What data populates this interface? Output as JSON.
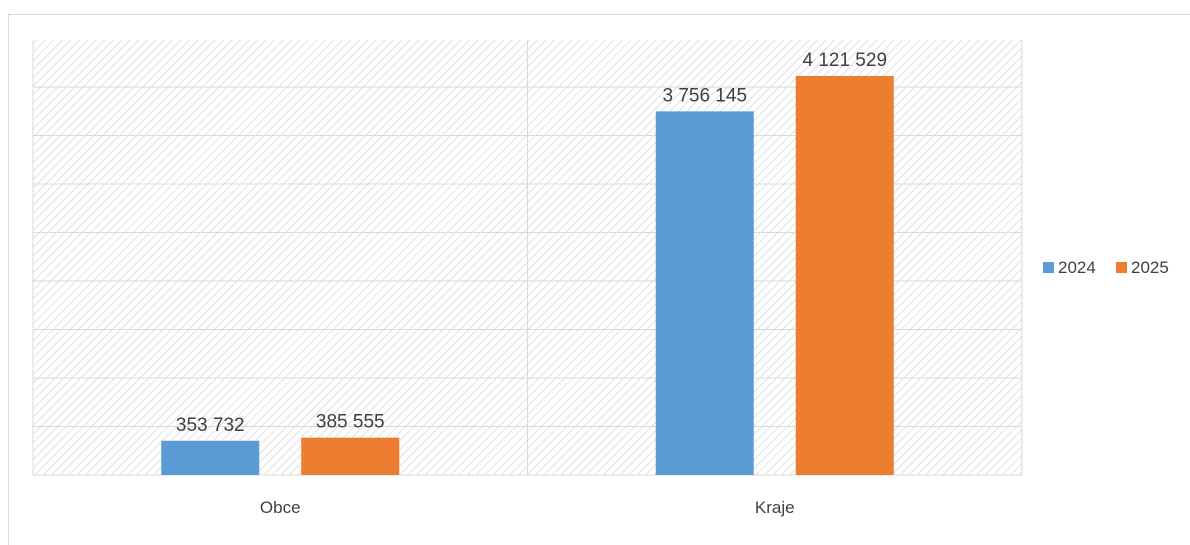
{
  "chart_data": {
    "type": "bar",
    "categories": [
      "Obce",
      "Kraje"
    ],
    "series": [
      {
        "name": "2024",
        "values": [
          353732,
          3756145
        ],
        "labels": [
          "353 732",
          "3 756 145"
        ],
        "color": "#5b9bd5"
      },
      {
        "name": "2025",
        "values": [
          385555,
          4121529
        ],
        "labels": [
          "385 555",
          "4 121 529"
        ],
        "color": "#ed7d31"
      }
    ],
    "title": "",
    "xlabel": "",
    "ylabel": "",
    "ylim": [
      0,
      4500000
    ],
    "grid": true,
    "background": "hatched",
    "legend_position": "right"
  }
}
